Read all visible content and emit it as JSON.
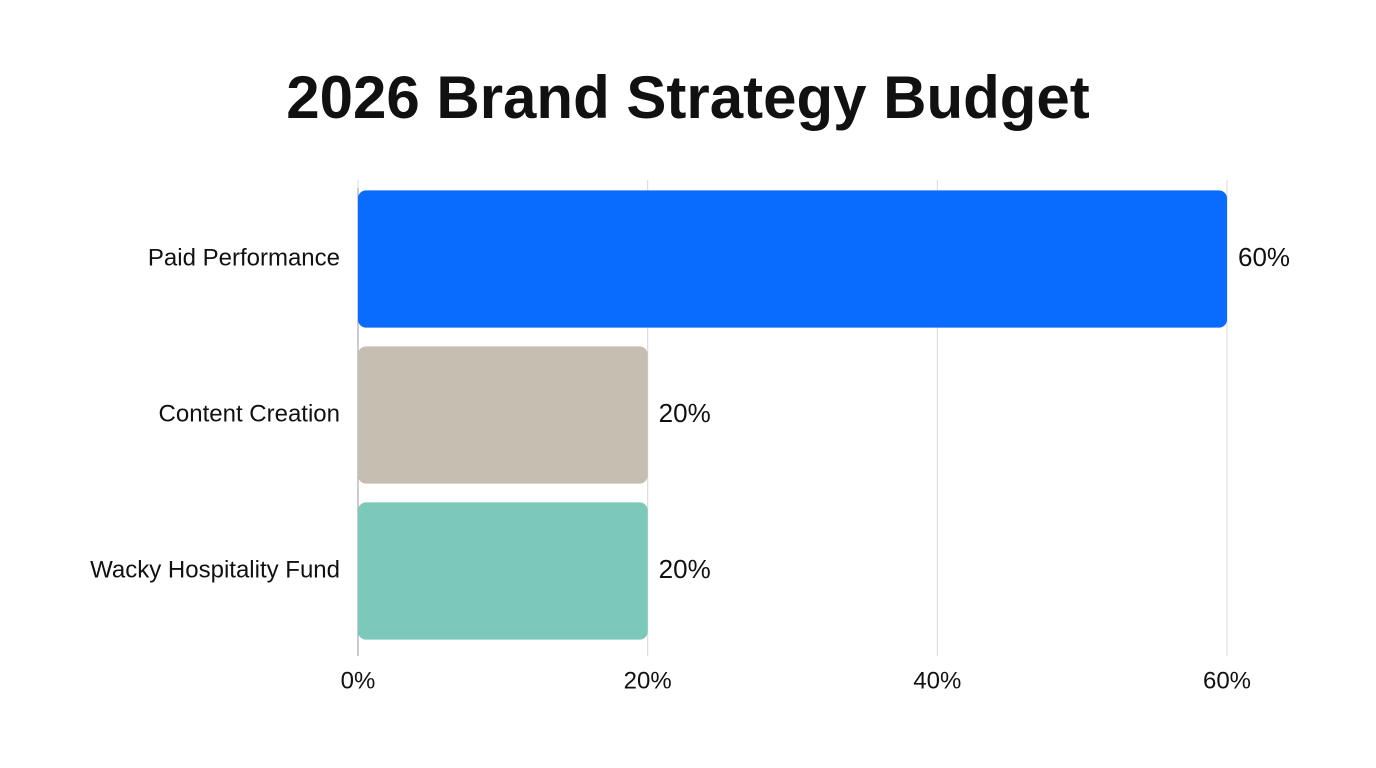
{
  "chart_data": {
    "type": "bar",
    "title": "2026 Brand Strategy Budget",
    "categories": [
      "Paid Performance",
      "Content Creation",
      "Wacky Hospitality Fund"
    ],
    "values": [
      60,
      20,
      20
    ],
    "value_labels": [
      "60%",
      "20%",
      "20%"
    ],
    "colors": [
      "#0a6cff",
      "#c5bfb1",
      "#7cc8bb"
    ],
    "xlim": [
      0,
      60
    ],
    "xticks": [
      {
        "value": 0,
        "label": "0%"
      },
      {
        "value": 20,
        "label": "20%"
      },
      {
        "value": 40,
        "label": "40%"
      },
      {
        "value": 60,
        "label": "60%"
      }
    ],
    "grid": true
  }
}
